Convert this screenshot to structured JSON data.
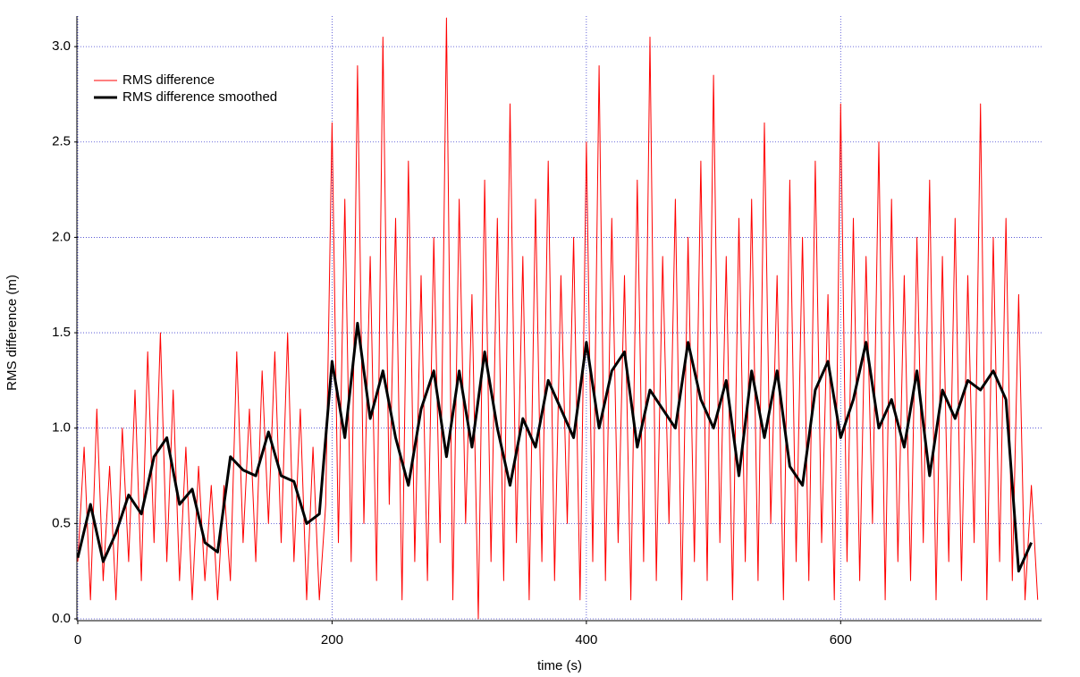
{
  "chart_data": {
    "type": "line",
    "x_label": "time (s)",
    "y_label": "RMS difference (m)",
    "xlim": [
      0,
      758
    ],
    "ylim": [
      0,
      3.16
    ],
    "xticks": [
      0,
      200,
      400,
      600
    ],
    "yticks": [
      {
        "value": 0,
        "label": "0.0"
      },
      0.5,
      {
        "value": 1,
        "label": "1.0"
      },
      1.5,
      {
        "value": 2,
        "label": "2.0"
      },
      2.5,
      {
        "value": 3,
        "label": "3.0"
      }
    ],
    "grid": true,
    "legend": "upper left",
    "series": [
      {
        "name": "RMS difference",
        "color": "#ff0000",
        "width": 1,
        "x": [
          0,
          5,
          10,
          15,
          20,
          25,
          30,
          35,
          40,
          45,
          50,
          55,
          60,
          65,
          70,
          75,
          80,
          85,
          90,
          95,
          100,
          105,
          110,
          115,
          120,
          125,
          130,
          135,
          140,
          145,
          150,
          155,
          160,
          165,
          170,
          175,
          180,
          185,
          190,
          195,
          200,
          205,
          210,
          215,
          220,
          225,
          230,
          235,
          240,
          245,
          250,
          255,
          260,
          265,
          270,
          275,
          280,
          285,
          290,
          295,
          300,
          305,
          310,
          315,
          320,
          325,
          330,
          335,
          340,
          345,
          350,
          355,
          360,
          365,
          370,
          375,
          380,
          385,
          390,
          395,
          400,
          405,
          410,
          415,
          420,
          425,
          430,
          435,
          440,
          445,
          450,
          455,
          460,
          465,
          470,
          475,
          480,
          485,
          490,
          495,
          500,
          505,
          510,
          515,
          520,
          525,
          530,
          535,
          540,
          545,
          550,
          555,
          560,
          565,
          570,
          575,
          580,
          585,
          590,
          595,
          600,
          605,
          610,
          615,
          620,
          625,
          630,
          635,
          640,
          645,
          650,
          655,
          660,
          665,
          670,
          675,
          680,
          685,
          690,
          695,
          700,
          705,
          710,
          715,
          720,
          725,
          730,
          735,
          740,
          745,
          750,
          755
        ],
        "values": [
          0.3,
          0.9,
          0.1,
          1.1,
          0.2,
          0.8,
          0.1,
          1.0,
          0.3,
          1.2,
          0.2,
          1.4,
          0.4,
          1.5,
          0.3,
          1.2,
          0.2,
          0.9,
          0.1,
          0.8,
          0.2,
          0.7,
          0.1,
          0.7,
          0.2,
          1.4,
          0.4,
          1.1,
          0.3,
          1.3,
          0.5,
          1.4,
          0.4,
          1.5,
          0.3,
          1.1,
          0.1,
          0.9,
          0.1,
          0.6,
          2.6,
          0.4,
          2.2,
          0.3,
          2.9,
          0.5,
          1.9,
          0.2,
          3.05,
          0.6,
          2.1,
          0.1,
          2.4,
          0.3,
          1.8,
          0.2,
          2.0,
          0.4,
          3.15,
          0.1,
          2.2,
          0.5,
          1.7,
          0.0,
          2.3,
          0.3,
          2.1,
          0.2,
          2.7,
          0.4,
          1.9,
          0.1,
          2.2,
          0.3,
          2.4,
          0.2,
          1.8,
          0.5,
          2.0,
          0.1,
          2.5,
          0.3,
          2.9,
          0.2,
          2.1,
          0.4,
          1.8,
          0.1,
          2.3,
          0.3,
          3.05,
          0.2,
          1.9,
          0.5,
          2.2,
          0.1,
          2.0,
          0.3,
          2.4,
          0.2,
          2.85,
          0.4,
          1.9,
          0.1,
          2.1,
          0.3,
          2.2,
          0.2,
          2.6,
          0.5,
          1.8,
          0.1,
          2.3,
          0.3,
          2.0,
          0.2,
          2.4,
          0.4,
          1.7,
          0.1,
          2.7,
          0.3,
          2.1,
          0.2,
          1.9,
          0.5,
          2.5,
          0.1,
          2.2,
          0.3,
          1.8,
          0.2,
          2.0,
          0.4,
          2.3,
          0.1,
          1.9,
          0.3,
          2.1,
          0.2,
          1.8,
          0.4,
          2.7,
          0.1,
          2.0,
          0.3,
          2.1,
          0.2,
          1.7,
          0.1,
          0.7,
          0.1
        ]
      },
      {
        "name": "RMS difference smoothed",
        "color": "#000000",
        "width": 3,
        "x": [
          0,
          10,
          20,
          30,
          40,
          50,
          60,
          70,
          80,
          90,
          100,
          110,
          120,
          130,
          140,
          150,
          160,
          170,
          180,
          190,
          200,
          210,
          220,
          230,
          240,
          250,
          260,
          270,
          280,
          290,
          300,
          310,
          320,
          330,
          340,
          350,
          360,
          370,
          380,
          390,
          400,
          410,
          420,
          430,
          440,
          450,
          460,
          470,
          480,
          490,
          500,
          510,
          520,
          530,
          540,
          550,
          560,
          570,
          580,
          590,
          600,
          610,
          620,
          630,
          640,
          650,
          660,
          670,
          680,
          690,
          700,
          710,
          720,
          730,
          740,
          750
        ],
        "values": [
          0.32,
          0.6,
          0.3,
          0.45,
          0.65,
          0.55,
          0.85,
          0.95,
          0.6,
          0.68,
          0.4,
          0.35,
          0.85,
          0.78,
          0.75,
          0.98,
          0.75,
          0.72,
          0.5,
          0.55,
          1.35,
          0.95,
          1.55,
          1.05,
          1.3,
          0.95,
          0.7,
          1.1,
          1.3,
          0.85,
          1.3,
          0.9,
          1.4,
          1.0,
          0.7,
          1.05,
          0.9,
          1.25,
          1.1,
          0.95,
          1.45,
          1.0,
          1.3,
          1.4,
          0.9,
          1.2,
          1.1,
          1.0,
          1.45,
          1.15,
          1.0,
          1.25,
          0.75,
          1.3,
          0.95,
          1.3,
          0.8,
          0.7,
          1.2,
          1.35,
          0.95,
          1.15,
          1.45,
          1.0,
          1.15,
          0.9,
          1.3,
          0.75,
          1.2,
          1.05,
          1.25,
          1.2,
          1.3,
          1.15,
          0.25,
          0.4
        ]
      }
    ]
  }
}
